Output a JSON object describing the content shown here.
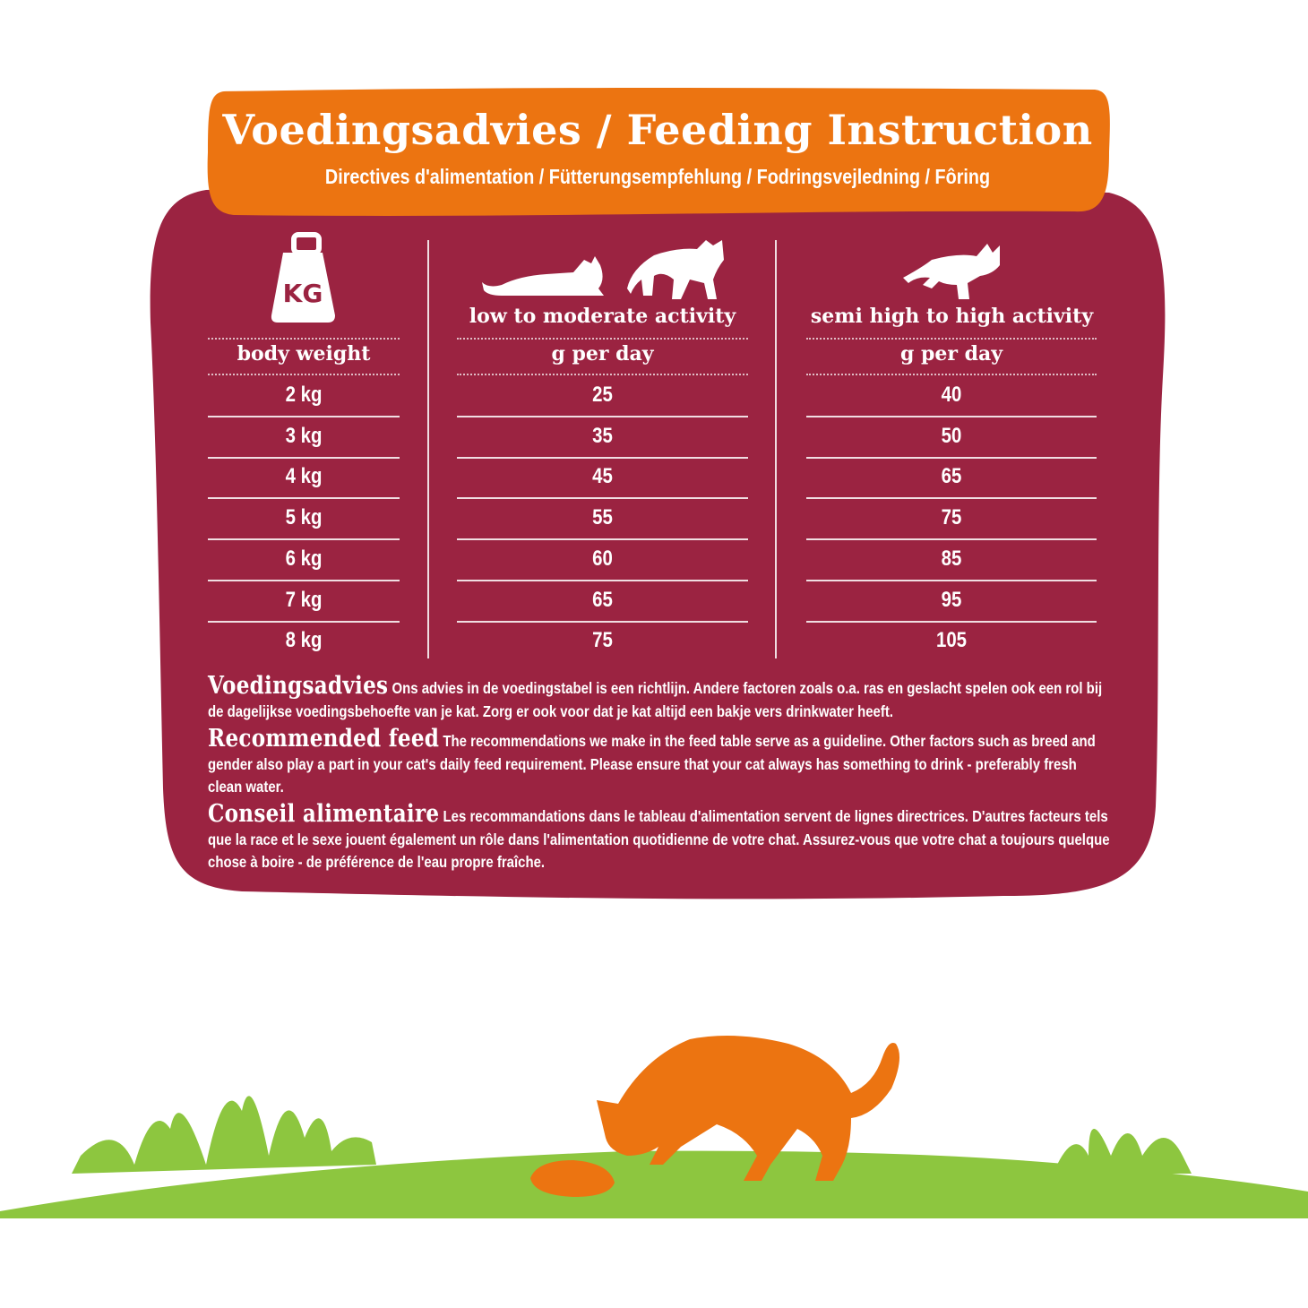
{
  "colors": {
    "orange": "#ec7411",
    "maroon": "#9b2341",
    "green": "#8dc63f"
  },
  "banner": {
    "title": "Voedingsadvies / Feeding Instruction",
    "subtitle": "Directives d'alimentation / Fütterungsempfehlung / Fodringsvejledning / Fôring"
  },
  "table": {
    "weight_icon_label": "KG",
    "columns": [
      {
        "icon": "kg-weight-icon",
        "subheader": "body weight",
        "header": ""
      },
      {
        "icon": "resting-cats-icon",
        "header": "low to moderate activity",
        "subheader": "g per day"
      },
      {
        "icon": "running-cat-icon",
        "header": "semi high to high activity",
        "subheader": "g per day"
      }
    ],
    "rows": [
      [
        "2 kg",
        "25",
        "40"
      ],
      [
        "3 kg",
        "35",
        "50"
      ],
      [
        "4 kg",
        "45",
        "65"
      ],
      [
        "5 kg",
        "55",
        "75"
      ],
      [
        "6 kg",
        "60",
        "85"
      ],
      [
        "7 kg",
        "65",
        "95"
      ],
      [
        "8 kg",
        "75",
        "105"
      ]
    ]
  },
  "advice": [
    {
      "heading": "Voedingsadvies",
      "text": "Ons advies in de voedingstabel is een richtlijn. Andere factoren zoals o.a. ras en geslacht spelen ook een rol bij de dagelijkse voedingsbehoefte van je kat. Zorg er ook voor dat je kat altijd een bakje vers drinkwater heeft."
    },
    {
      "heading": "Recommended feed",
      "text": "The recommendations we make in the feed table serve as a guideline. Other factors such as breed and gender also play a part in your cat's daily feed requirement. Please ensure that your cat always has something to drink - preferably fresh clean water."
    },
    {
      "heading": "Conseil alimentaire",
      "text": "Les recommandations dans le tableau d'alimentation servent de lignes directrices. D'autres facteurs tels que la race et le sexe jouent également un rôle dans l'alimentation quotidienne de votre chat. Assurez-vous que votre chat a toujours quelque chose à boire - de préférence de l'eau propre fraîche."
    }
  ]
}
